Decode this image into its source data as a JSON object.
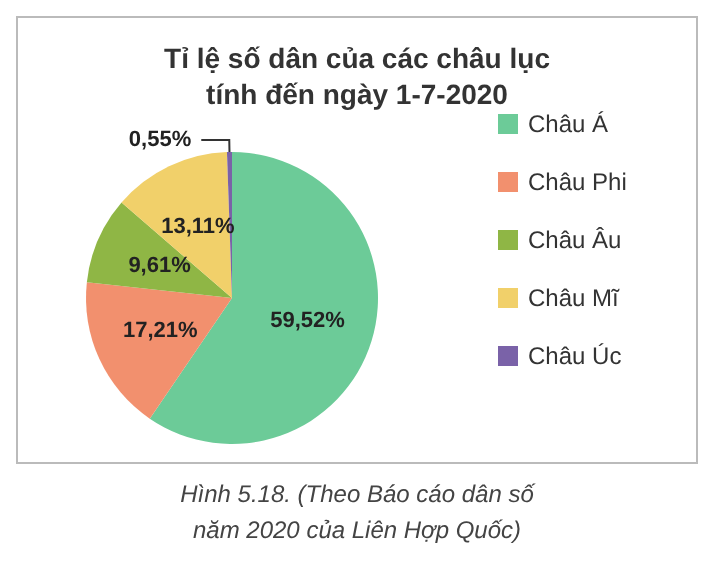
{
  "chart_data": {
    "type": "pie",
    "title": "Tỉ lệ số dân của các châu lục\ntính đến ngày 1-7-2020",
    "categories": [
      "Châu Á",
      "Châu Phi",
      "Châu Âu",
      "Châu Mĩ",
      "Châu Úc"
    ],
    "values": [
      59.52,
      17.21,
      9.61,
      13.11,
      0.55
    ],
    "value_labels": [
      "59,52%",
      "17,21%",
      "9,61%",
      "13,11%",
      "0,55%"
    ],
    "colors": [
      "#6ccb98",
      "#f2906e",
      "#8fb645",
      "#f1d06a",
      "#7a62a8"
    ],
    "legend": "right",
    "annotations": [
      "Hình 5.18. (Theo Báo cáo dân số năm 2020 của Liên Hợp Quốc)"
    ]
  }
}
